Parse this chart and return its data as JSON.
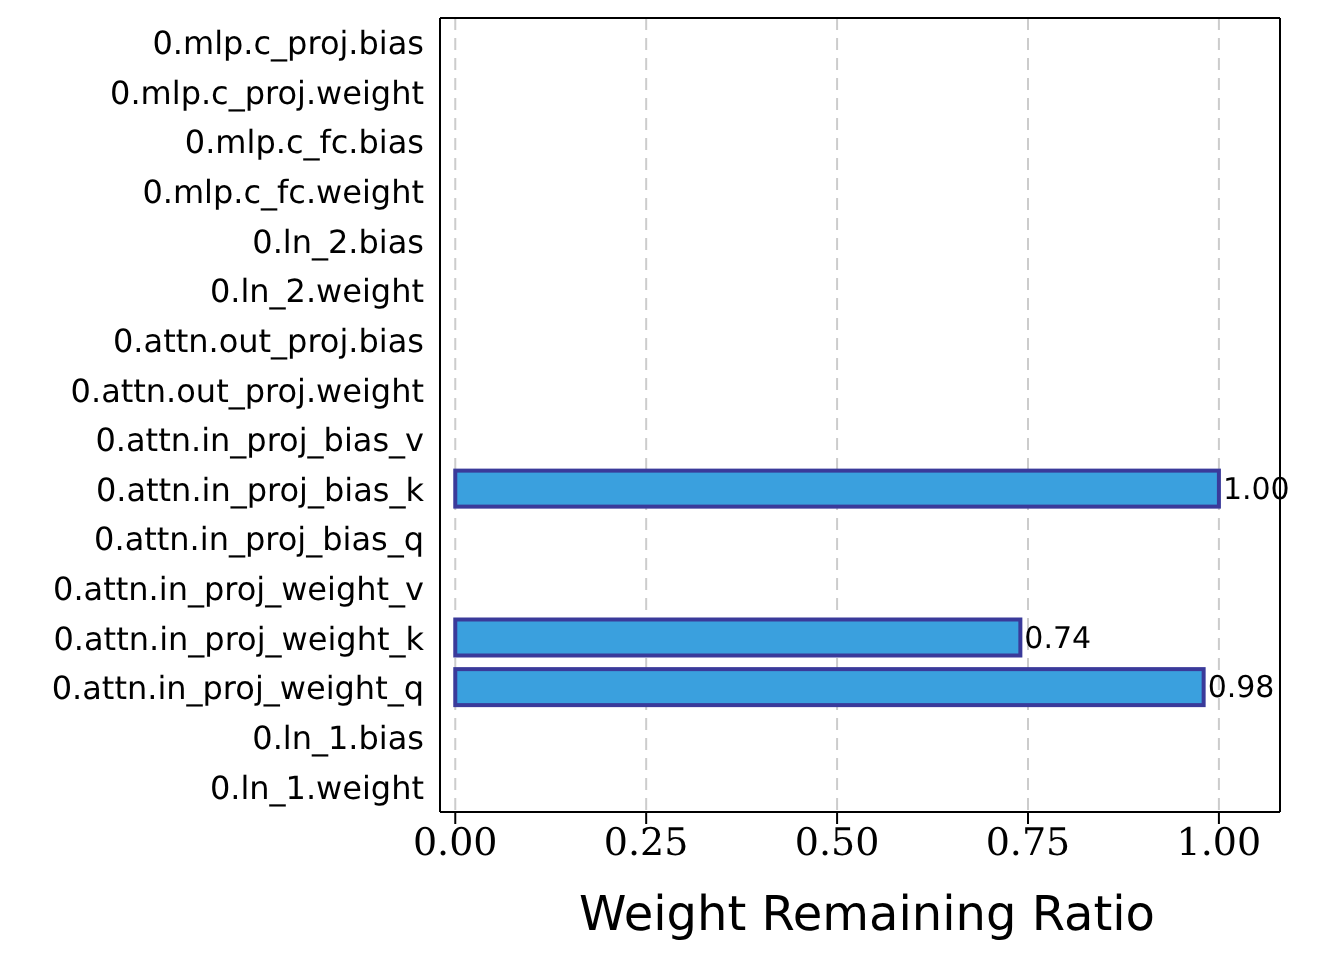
{
  "chart_data": {
    "type": "bar",
    "orientation": "horizontal",
    "xlabel": "Weight Remaining Ratio",
    "categories": [
      "0.mlp.c_proj.bias",
      "0.mlp.c_proj.weight",
      "0.mlp.c_fc.bias",
      "0.mlp.c_fc.weight",
      "0.ln_2.bias",
      "0.ln_2.weight",
      "0.attn.out_proj.bias",
      "0.attn.out_proj.weight",
      "0.attn.in_proj_bias_v",
      "0.attn.in_proj_bias_k",
      "0.attn.in_proj_bias_q",
      "0.attn.in_proj_weight_v",
      "0.attn.in_proj_weight_k",
      "0.attn.in_proj_weight_q",
      "0.ln_1.bias",
      "0.ln_1.weight"
    ],
    "values": [
      0,
      0,
      0,
      0,
      0,
      0,
      0,
      0,
      0,
      1.0,
      0,
      0,
      0.74,
      0.98,
      0,
      0
    ],
    "value_labels": [
      null,
      null,
      null,
      null,
      null,
      null,
      null,
      null,
      null,
      "1.00",
      null,
      null,
      "0.74",
      "0.98",
      null,
      null
    ],
    "color": "#3aa0de",
    "xlim": [
      -0.02,
      1.08
    ],
    "xticks": [
      {
        "value": 0,
        "label": "0.00"
      },
      {
        "value": 0.25,
        "label": "0.25"
      },
      {
        "value": 0.5,
        "label": "0.50"
      },
      {
        "value": 0.75,
        "label": "0.75"
      },
      {
        "value": 1,
        "label": "1.00"
      }
    ],
    "grid": "x"
  }
}
